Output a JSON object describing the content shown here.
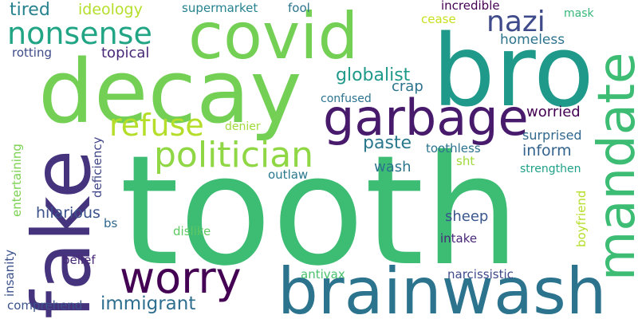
{
  "words": {
    "tooth": {
      "text": "tooth",
      "color": "#3dbc74"
    },
    "decay": {
      "text": "decay",
      "color": "#74d055"
    },
    "covid": {
      "text": "covid",
      "color": "#74d055"
    },
    "bro": {
      "text": "bro",
      "color": "#1f9a8a"
    },
    "brainwash": {
      "text": "brainwash",
      "color": "#2c738e"
    },
    "fake": {
      "text": "fake",
      "color": "#46337e"
    },
    "mandate": {
      "text": "mandate",
      "color": "#3dbc74"
    },
    "garbage": {
      "text": "garbage",
      "color": "#481a6c"
    },
    "worry": {
      "text": "worry",
      "color": "#440154"
    },
    "politician": {
      "text": "politician",
      "color": "#8fd744"
    },
    "nonsense": {
      "text": "nonsense",
      "color": "#21a585"
    },
    "refuse": {
      "text": "refuse",
      "color": "#b5de2b"
    },
    "nazi": {
      "text": "nazi",
      "color": "#3e4a89"
    },
    "immigrant": {
      "text": "immigrant",
      "color": "#2e6e8e"
    },
    "tired": {
      "text": "tired",
      "color": "#26828e"
    },
    "ideology": {
      "text": "ideology",
      "color": "#b5de2b"
    },
    "globalist": {
      "text": "globalist",
      "color": "#1f9a8a"
    },
    "paste": {
      "text": "paste",
      "color": "#2a788e"
    },
    "hilarious": {
      "text": "hilarious",
      "color": "#3b528b"
    },
    "worried": {
      "text": "worried",
      "color": "#440154"
    },
    "inform": {
      "text": "inform",
      "color": "#33638d"
    },
    "sheep": {
      "text": "sheep",
      "color": "#39568c"
    },
    "wash": {
      "text": "wash",
      "color": "#2c738e"
    },
    "crap": {
      "text": "crap",
      "color": "#2c738e"
    },
    "topical": {
      "text": "topical",
      "color": "#482878"
    },
    "homeless": {
      "text": "homeless",
      "color": "#2c738e"
    },
    "cease": {
      "text": "cease",
      "color": "#c8e020"
    },
    "incredible": {
      "text": "incredible",
      "color": "#440154"
    },
    "mask": {
      "text": "mask",
      "color": "#35b779"
    },
    "surprised": {
      "text": "surprised",
      "color": "#31688e"
    },
    "supermarket": {
      "text": "supermarket",
      "color": "#26828e"
    },
    "fool": {
      "text": "fool",
      "color": "#2c738e"
    },
    "rotting": {
      "text": "rotting",
      "color": "#3e4a89"
    },
    "confused": {
      "text": "confused",
      "color": "#2c738e"
    },
    "toothless": {
      "text": "toothless",
      "color": "#2c738e"
    },
    "sht": {
      "text": "sht",
      "color": "#a0da39"
    },
    "strengthen": {
      "text": "strengthen",
      "color": "#1fa187"
    },
    "outlaw": {
      "text": "outlaw",
      "color": "#2a788e"
    },
    "denier": {
      "text": "denier",
      "color": "#a0da39"
    },
    "dislike": {
      "text": "dislike",
      "color": "#5ec962"
    },
    "intake": {
      "text": "intake",
      "color": "#482878"
    },
    "antivax": {
      "text": "antivax",
      "color": "#4ac16d"
    },
    "narcissistic": {
      "text": "narcissistic",
      "color": "#3e4a89"
    },
    "bs": {
      "text": "bs",
      "color": "#31688e"
    },
    "belief": {
      "text": "belief",
      "color": "#482878"
    },
    "comprehend": {
      "text": "comprehend",
      "color": "#3b528b"
    },
    "entertaining": {
      "text": "entertaining",
      "color": "#7ad151"
    },
    "deficiency": {
      "text": "deficiency",
      "color": "#404688"
    },
    "insanity": {
      "text": "insanity",
      "color": "#3b528b"
    },
    "boyfriend": {
      "text": "boyfriend",
      "color": "#b5de2b"
    }
  }
}
